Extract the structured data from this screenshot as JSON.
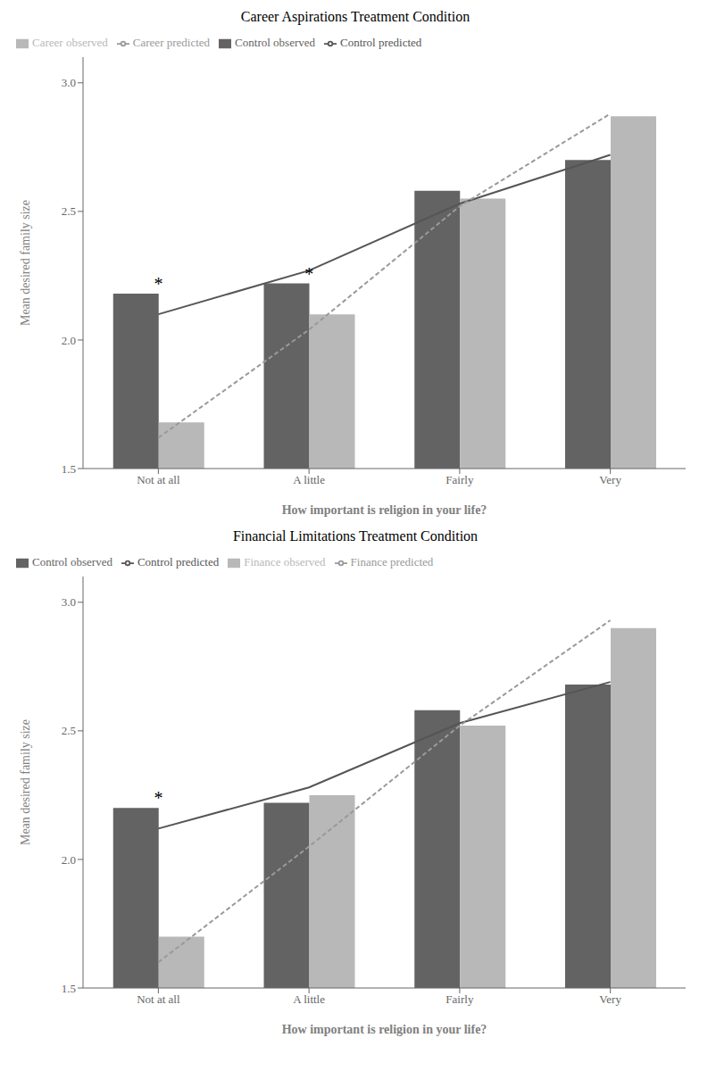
{
  "chart_data": [
    {
      "type": "bar",
      "title": "Career Aspirations Treatment Condition",
      "xlabel": "How important is religion in your life?",
      "ylabel": "Mean desired family size",
      "categories": [
        "Not at all",
        "A little",
        "Fairly",
        "Very"
      ],
      "ylim": [
        1.5,
        3.1
      ],
      "yticks": [
        1.5,
        {
          "value": 2.0,
          "label": "2.0"
        },
        2.5,
        {
          "value": 3.0,
          "label": "3.0"
        }
      ],
      "grid": false,
      "legend": "upper left",
      "series": [
        {
          "name": "Control observed",
          "type": "bar",
          "color": "#636363",
          "values": [
            2.18,
            2.22,
            2.58,
            2.7
          ]
        },
        {
          "name": "Career observed",
          "type": "bar",
          "color": "#b8b8b8",
          "values": [
            1.68,
            2.1,
            2.55,
            2.87
          ]
        },
        {
          "name": "Control predicted",
          "type": "line",
          "color": "#555555",
          "line_style": "solid",
          "values": [
            2.1,
            2.27,
            2.53,
            2.72
          ]
        },
        {
          "name": "Career predicted",
          "type": "line",
          "color": "#999999",
          "line_style": "dashed",
          "values": [
            1.62,
            2.04,
            2.52,
            2.88
          ]
        }
      ],
      "annotations": [
        {
          "category": "Not at all",
          "text": "*"
        },
        {
          "category": "A little",
          "text": "*"
        }
      ]
    },
    {
      "type": "bar",
      "title": "Financial Limitations Treatment Condition",
      "xlabel": "How important is religion in your life?",
      "ylabel": "Mean desired family size",
      "categories": [
        "Not at all",
        "A little",
        "Fairly",
        "Very"
      ],
      "ylim": [
        1.5,
        3.1
      ],
      "yticks": [
        1.5,
        {
          "value": 2.0,
          "label": "2.0"
        },
        2.5,
        {
          "value": 3.0,
          "label": "3.0"
        }
      ],
      "grid": false,
      "legend": "upper left",
      "series": [
        {
          "name": "Control observed",
          "type": "bar",
          "color": "#636363",
          "values": [
            2.2,
            2.22,
            2.58,
            2.68
          ]
        },
        {
          "name": "Finance observed",
          "type": "bar",
          "color": "#b8b8b8",
          "values": [
            1.7,
            2.25,
            2.52,
            2.9
          ]
        },
        {
          "name": "Control predicted",
          "type": "line",
          "color": "#555555",
          "line_style": "solid",
          "values": [
            2.12,
            2.28,
            2.53,
            2.69
          ]
        },
        {
          "name": "Finance predicted",
          "type": "line",
          "color": "#999999",
          "line_style": "dashed",
          "values": [
            1.6,
            2.05,
            2.52,
            2.93
          ]
        }
      ],
      "annotations": [
        {
          "category": "Not at all",
          "text": "*"
        }
      ]
    }
  ]
}
